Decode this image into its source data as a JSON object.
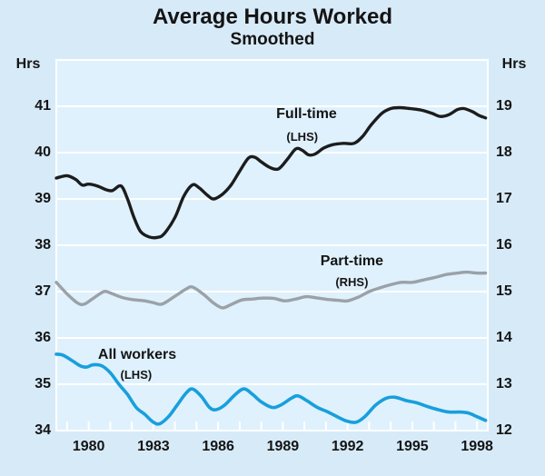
{
  "title": "Average Hours Worked",
  "subtitle": "Smoothed",
  "left_axis": {
    "unit": "Hrs",
    "ticks": [
      "34",
      "35",
      "36",
      "37",
      "38",
      "39",
      "40",
      "41"
    ],
    "range": [
      34,
      42
    ]
  },
  "right_axis": {
    "unit": "Hrs",
    "ticks": [
      "12",
      "13",
      "14",
      "15",
      "16",
      "17",
      "18",
      "19"
    ],
    "range": [
      12,
      20
    ]
  },
  "x_axis": {
    "tick_labels": [
      "1980",
      "1983",
      "1986",
      "1989",
      "1992",
      "1995",
      "1998"
    ],
    "tick_years": [
      1980,
      1983,
      1986,
      1989,
      1992,
      1995,
      1998
    ],
    "range": [
      1978.5,
      1998.5
    ],
    "minor_tick_every_years": 1
  },
  "colors": {
    "page_background": "#d7eaf8",
    "plot_background": "#dff1fc",
    "grid": "#ffffff",
    "text": "#141414",
    "full_time_line": "#1c1c1c",
    "part_time_line": "#9aa1a8",
    "all_workers_line": "#189fdd"
  },
  "chart_data": {
    "type": "line",
    "title": "Average Hours Worked",
    "subtitle": "Smoothed",
    "ylabel_left": "Hrs",
    "ylabel_right": "Hrs",
    "x_range": [
      1978.5,
      1998.5
    ],
    "left_axis_range": [
      34,
      42
    ],
    "right_axis_range": [
      12,
      20
    ],
    "grid": true,
    "series": [
      {
        "name": "Full-time",
        "axis": "left",
        "label": "Full-time",
        "sub_label": "(LHS)",
        "color": "#1c1c1c",
        "width": 3.4,
        "label_anchor": {
          "year": 1990.1,
          "value": 40.82
        },
        "sub_label_anchor": {
          "year": 1989.9,
          "value": 40.34
        },
        "points": [
          [
            1978.5,
            39.45
          ],
          [
            1979.0,
            39.5
          ],
          [
            1979.4,
            39.42
          ],
          [
            1979.7,
            39.3
          ],
          [
            1980.0,
            39.32
          ],
          [
            1980.4,
            39.28
          ],
          [
            1980.8,
            39.2
          ],
          [
            1981.1,
            39.18
          ],
          [
            1981.5,
            39.28
          ],
          [
            1981.8,
            39.0
          ],
          [
            1982.1,
            38.6
          ],
          [
            1982.4,
            38.3
          ],
          [
            1982.8,
            38.18
          ],
          [
            1983.2,
            38.17
          ],
          [
            1983.5,
            38.25
          ],
          [
            1984.0,
            38.6
          ],
          [
            1984.4,
            39.05
          ],
          [
            1984.8,
            39.3
          ],
          [
            1985.1,
            39.25
          ],
          [
            1985.5,
            39.08
          ],
          [
            1985.8,
            39.0
          ],
          [
            1986.2,
            39.1
          ],
          [
            1986.6,
            39.3
          ],
          [
            1987.0,
            39.6
          ],
          [
            1987.4,
            39.88
          ],
          [
            1987.7,
            39.9
          ],
          [
            1988.0,
            39.8
          ],
          [
            1988.4,
            39.68
          ],
          [
            1988.8,
            39.65
          ],
          [
            1989.2,
            39.85
          ],
          [
            1989.6,
            40.08
          ],
          [
            1989.9,
            40.05
          ],
          [
            1990.2,
            39.95
          ],
          [
            1990.5,
            39.97
          ],
          [
            1990.9,
            40.1
          ],
          [
            1991.3,
            40.17
          ],
          [
            1991.8,
            40.2
          ],
          [
            1992.3,
            40.2
          ],
          [
            1992.7,
            40.35
          ],
          [
            1993.1,
            40.6
          ],
          [
            1993.6,
            40.85
          ],
          [
            1994.0,
            40.95
          ],
          [
            1994.4,
            40.97
          ],
          [
            1994.9,
            40.95
          ],
          [
            1995.4,
            40.92
          ],
          [
            1995.9,
            40.85
          ],
          [
            1996.3,
            40.78
          ],
          [
            1996.7,
            40.82
          ],
          [
            1997.1,
            40.93
          ],
          [
            1997.4,
            40.95
          ],
          [
            1997.8,
            40.88
          ],
          [
            1998.1,
            40.8
          ],
          [
            1998.4,
            40.75
          ]
        ]
      },
      {
        "name": "Part-time",
        "axis": "right",
        "label": "Part-time",
        "sub_label": "(RHS)",
        "color": "#9aa1a8",
        "width": 3.4,
        "label_anchor": {
          "year": 1992.2,
          "value": 15.64
        },
        "sub_label_anchor": {
          "year": 1992.2,
          "value": 15.2
        },
        "points": [
          [
            1978.5,
            15.2
          ],
          [
            1979.0,
            14.95
          ],
          [
            1979.5,
            14.75
          ],
          [
            1979.8,
            14.73
          ],
          [
            1980.2,
            14.85
          ],
          [
            1980.7,
            15.0
          ],
          [
            1981.0,
            14.97
          ],
          [
            1981.5,
            14.88
          ],
          [
            1982.0,
            14.83
          ],
          [
            1982.6,
            14.8
          ],
          [
            1983.0,
            14.76
          ],
          [
            1983.4,
            14.73
          ],
          [
            1984.0,
            14.9
          ],
          [
            1984.5,
            15.05
          ],
          [
            1984.8,
            15.1
          ],
          [
            1985.3,
            14.95
          ],
          [
            1985.8,
            14.75
          ],
          [
            1986.2,
            14.65
          ],
          [
            1986.6,
            14.72
          ],
          [
            1987.1,
            14.82
          ],
          [
            1987.6,
            14.84
          ],
          [
            1988.1,
            14.86
          ],
          [
            1988.6,
            14.85
          ],
          [
            1989.1,
            14.8
          ],
          [
            1989.6,
            14.84
          ],
          [
            1990.1,
            14.89
          ],
          [
            1990.6,
            14.86
          ],
          [
            1991.1,
            14.83
          ],
          [
            1991.6,
            14.81
          ],
          [
            1992.0,
            14.8
          ],
          [
            1992.5,
            14.88
          ],
          [
            1993.0,
            15.0
          ],
          [
            1993.5,
            15.08
          ],
          [
            1994.0,
            15.15
          ],
          [
            1994.5,
            15.2
          ],
          [
            1995.0,
            15.2
          ],
          [
            1995.5,
            15.25
          ],
          [
            1996.0,
            15.3
          ],
          [
            1996.6,
            15.37
          ],
          [
            1997.1,
            15.4
          ],
          [
            1997.5,
            15.42
          ],
          [
            1998.0,
            15.4
          ],
          [
            1998.4,
            15.4
          ]
        ]
      },
      {
        "name": "All workers",
        "axis": "left",
        "label": "All workers",
        "sub_label": "(LHS)",
        "color": "#189fdd",
        "width": 3.6,
        "label_anchor": {
          "year": 1982.25,
          "value": 35.62
        },
        "sub_label_anchor": {
          "year": 1982.2,
          "value": 35.2
        },
        "points": [
          [
            1978.5,
            35.65
          ],
          [
            1978.8,
            35.63
          ],
          [
            1979.2,
            35.52
          ],
          [
            1979.6,
            35.4
          ],
          [
            1979.9,
            35.37
          ],
          [
            1980.2,
            35.42
          ],
          [
            1980.6,
            35.4
          ],
          [
            1981.0,
            35.25
          ],
          [
            1981.4,
            35.0
          ],
          [
            1981.8,
            34.78
          ],
          [
            1982.2,
            34.5
          ],
          [
            1982.6,
            34.35
          ],
          [
            1983.0,
            34.18
          ],
          [
            1983.3,
            34.15
          ],
          [
            1983.7,
            34.3
          ],
          [
            1984.1,
            34.55
          ],
          [
            1984.5,
            34.8
          ],
          [
            1984.8,
            34.9
          ],
          [
            1985.2,
            34.75
          ],
          [
            1985.6,
            34.5
          ],
          [
            1985.9,
            34.45
          ],
          [
            1986.3,
            34.55
          ],
          [
            1986.8,
            34.78
          ],
          [
            1987.2,
            34.9
          ],
          [
            1987.6,
            34.78
          ],
          [
            1988.0,
            34.62
          ],
          [
            1988.5,
            34.5
          ],
          [
            1988.9,
            34.55
          ],
          [
            1989.4,
            34.7
          ],
          [
            1989.7,
            34.75
          ],
          [
            1990.1,
            34.65
          ],
          [
            1990.6,
            34.5
          ],
          [
            1991.1,
            34.4
          ],
          [
            1991.6,
            34.28
          ],
          [
            1992.0,
            34.2
          ],
          [
            1992.4,
            34.18
          ],
          [
            1992.8,
            34.3
          ],
          [
            1993.3,
            34.55
          ],
          [
            1993.8,
            34.7
          ],
          [
            1994.2,
            34.72
          ],
          [
            1994.7,
            34.65
          ],
          [
            1995.2,
            34.6
          ],
          [
            1995.7,
            34.52
          ],
          [
            1996.2,
            34.45
          ],
          [
            1996.7,
            34.4
          ],
          [
            1997.2,
            34.4
          ],
          [
            1997.6,
            34.38
          ],
          [
            1998.0,
            34.3
          ],
          [
            1998.4,
            34.22
          ]
        ]
      }
    ]
  }
}
